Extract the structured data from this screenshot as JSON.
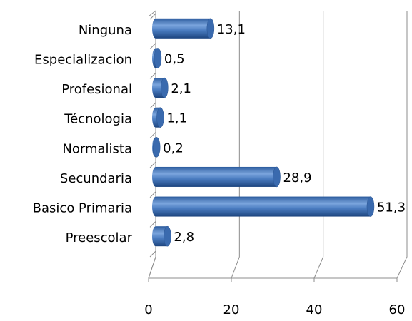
{
  "chart_data": {
    "type": "bar",
    "orientation": "horizontal",
    "categories": [
      "Ninguna",
      "Especializacion",
      "Profesional",
      "Técnologia",
      "Normalista",
      "Secundaria",
      "Basico Primaria",
      "Preescolar"
    ],
    "values": [
      13.1,
      0.5,
      2.1,
      1.1,
      0.2,
      28.9,
      51.3,
      2.8
    ],
    "value_labels": [
      "13,1",
      "0,5",
      "2,1",
      "1,1",
      "0,2",
      "28,9",
      "51,3",
      "2,8"
    ],
    "color": "#4f81bd",
    "xlim": [
      0,
      60
    ],
    "xticks": [
      0,
      20,
      40,
      60
    ],
    "grid": true
  }
}
